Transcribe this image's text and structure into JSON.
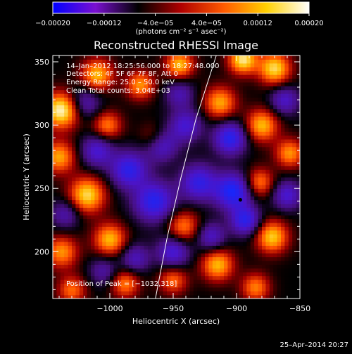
{
  "chart_data": {
    "type": "heatmap",
    "title": "Reconstructed RHESSI Image",
    "xlabel": "Heliocentric X (arcsec)",
    "ylabel": "Heliocentric Y (arcsec)",
    "xlim": [
      -1045,
      -850
    ],
    "ylim": [
      163,
      355
    ],
    "xticks": [
      -1000,
      -950,
      -900,
      -850
    ],
    "yticks": [
      200,
      250,
      300,
      350
    ],
    "xtick_labels": [
      "−1000",
      "−950",
      "−900",
      "−850"
    ],
    "ytick_labels": [
      "200",
      "250",
      "300",
      "350"
    ],
    "colorbar": {
      "min": -0.0002,
      "max": 0.0002,
      "ticks": [
        -0.0002,
        -0.00012,
        -4e-05,
        4e-05,
        0.00012,
        0.0002
      ],
      "tick_labels": [
        "−0.00020",
        "−0.00012",
        "−4.0e−05",
        "4.0e−05",
        "0.00012",
        "0.00020"
      ],
      "units_label": "(photons cm⁻² s⁻¹ asec⁻²)",
      "colors": [
        "#0000ff",
        "#7a10d0",
        "#000000",
        "#b00000",
        "#ff5a00",
        "#ffd000",
        "#ffffff"
      ]
    },
    "annotations": [
      "14–Jan–2012 18:25:56.000 to 18:27:48.000",
      "Detectors: 4F 5F 6F 7F 8F, Att 0",
      "Energy Range: 25.0 – 50.0 keV",
      "Clean   Total counts: 3.04E+03"
    ],
    "peak_label": "Position of Peak = [−1032,318]",
    "peak": [
      -1032,
      318
    ],
    "limb_curve": [
      [
        -964,
        163
      ],
      [
        -955,
        210
      ],
      [
        -944,
        258
      ],
      [
        -932,
        305
      ],
      [
        -916,
        355
      ]
    ],
    "marker": [
      -897,
      241
    ],
    "blobs": [
      {
        "x": -1038,
        "y": 312,
        "a": 1.0,
        "s": 10
      },
      {
        "x": -1010,
        "y": 340,
        "a": 0.75,
        "s": 9
      },
      {
        "x": -976,
        "y": 332,
        "a": 0.65,
        "s": 8
      },
      {
        "x": -1002,
        "y": 300,
        "a": 0.6,
        "s": 8
      },
      {
        "x": -1040,
        "y": 275,
        "a": 0.7,
        "s": 9
      },
      {
        "x": -1018,
        "y": 245,
        "a": 0.85,
        "s": 10
      },
      {
        "x": -965,
        "y": 290,
        "a": 0.45,
        "s": 8
      },
      {
        "x": -945,
        "y": 348,
        "a": 0.75,
        "s": 8
      },
      {
        "x": -913,
        "y": 318,
        "a": 0.7,
        "s": 9
      },
      {
        "x": -880,
        "y": 300,
        "a": 0.75,
        "s": 9
      },
      {
        "x": -870,
        "y": 345,
        "a": 0.85,
        "s": 9
      },
      {
        "x": -895,
        "y": 352,
        "a": 0.9,
        "s": 8
      },
      {
        "x": -858,
        "y": 278,
        "a": 0.65,
        "s": 8
      },
      {
        "x": -882,
        "y": 255,
        "a": 0.6,
        "s": 8
      },
      {
        "x": -872,
        "y": 212,
        "a": 0.8,
        "s": 9
      },
      {
        "x": -915,
        "y": 190,
        "a": 0.75,
        "s": 9
      },
      {
        "x": -885,
        "y": 172,
        "a": 0.6,
        "s": 8
      },
      {
        "x": -942,
        "y": 220,
        "a": 0.6,
        "s": 9
      },
      {
        "x": -950,
        "y": 178,
        "a": 0.55,
        "s": 8
      },
      {
        "x": -1000,
        "y": 210,
        "a": 0.75,
        "s": 9
      },
      {
        "x": -1038,
        "y": 200,
        "a": 0.65,
        "s": 9
      },
      {
        "x": -1030,
        "y": 170,
        "a": 0.55,
        "s": 8
      },
      {
        "x": -988,
        "y": 175,
        "a": 0.6,
        "s": 8
      },
      {
        "x": -1020,
        "y": 318,
        "a": -0.5,
        "s": 9
      },
      {
        "x": -985,
        "y": 265,
        "a": -0.8,
        "s": 10
      },
      {
        "x": -965,
        "y": 240,
        "a": -0.85,
        "s": 11
      },
      {
        "x": -960,
        "y": 285,
        "a": -0.7,
        "s": 9
      },
      {
        "x": -940,
        "y": 300,
        "a": -0.6,
        "s": 9
      },
      {
        "x": -930,
        "y": 255,
        "a": -0.75,
        "s": 10
      },
      {
        "x": -903,
        "y": 248,
        "a": -0.95,
        "s": 10
      },
      {
        "x": -893,
        "y": 225,
        "a": -0.8,
        "s": 8
      },
      {
        "x": -905,
        "y": 290,
        "a": -0.85,
        "s": 9
      },
      {
        "x": -860,
        "y": 245,
        "a": -0.6,
        "s": 8
      },
      {
        "x": -950,
        "y": 200,
        "a": -0.65,
        "s": 9
      },
      {
        "x": -980,
        "y": 195,
        "a": -0.5,
        "s": 8
      },
      {
        "x": -1010,
        "y": 280,
        "a": -0.6,
        "s": 9
      },
      {
        "x": -1035,
        "y": 230,
        "a": -0.45,
        "s": 8
      },
      {
        "x": -920,
        "y": 212,
        "a": -0.55,
        "s": 8
      },
      {
        "x": -862,
        "y": 320,
        "a": -0.55,
        "s": 8
      },
      {
        "x": -945,
        "y": 325,
        "a": -0.45,
        "s": 8
      },
      {
        "x": -1005,
        "y": 185,
        "a": -0.4,
        "s": 8
      }
    ]
  },
  "footer": {
    "date_label": "25–Apr–2014 20:27"
  }
}
